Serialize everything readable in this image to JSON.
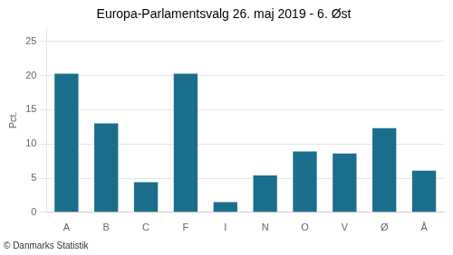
{
  "chart_data": {
    "type": "bar",
    "title": "Europa-Parlamentsvalg 26. maj 2019 - 6. Øst",
    "ylabel": "Pct.",
    "footer": "© Danmarks Statistik",
    "categories": [
      "A",
      "B",
      "C",
      "F",
      "I",
      "N",
      "O",
      "V",
      "Ø",
      "Å"
    ],
    "values": [
      20.3,
      13.0,
      4.4,
      20.3,
      1.5,
      5.4,
      8.9,
      8.6,
      12.3,
      6.1
    ],
    "color": "#1a6e8c",
    "ylim": [
      0,
      27
    ],
    "yticks": [
      0,
      5,
      10,
      15,
      20,
      25
    ],
    "grid": true
  }
}
